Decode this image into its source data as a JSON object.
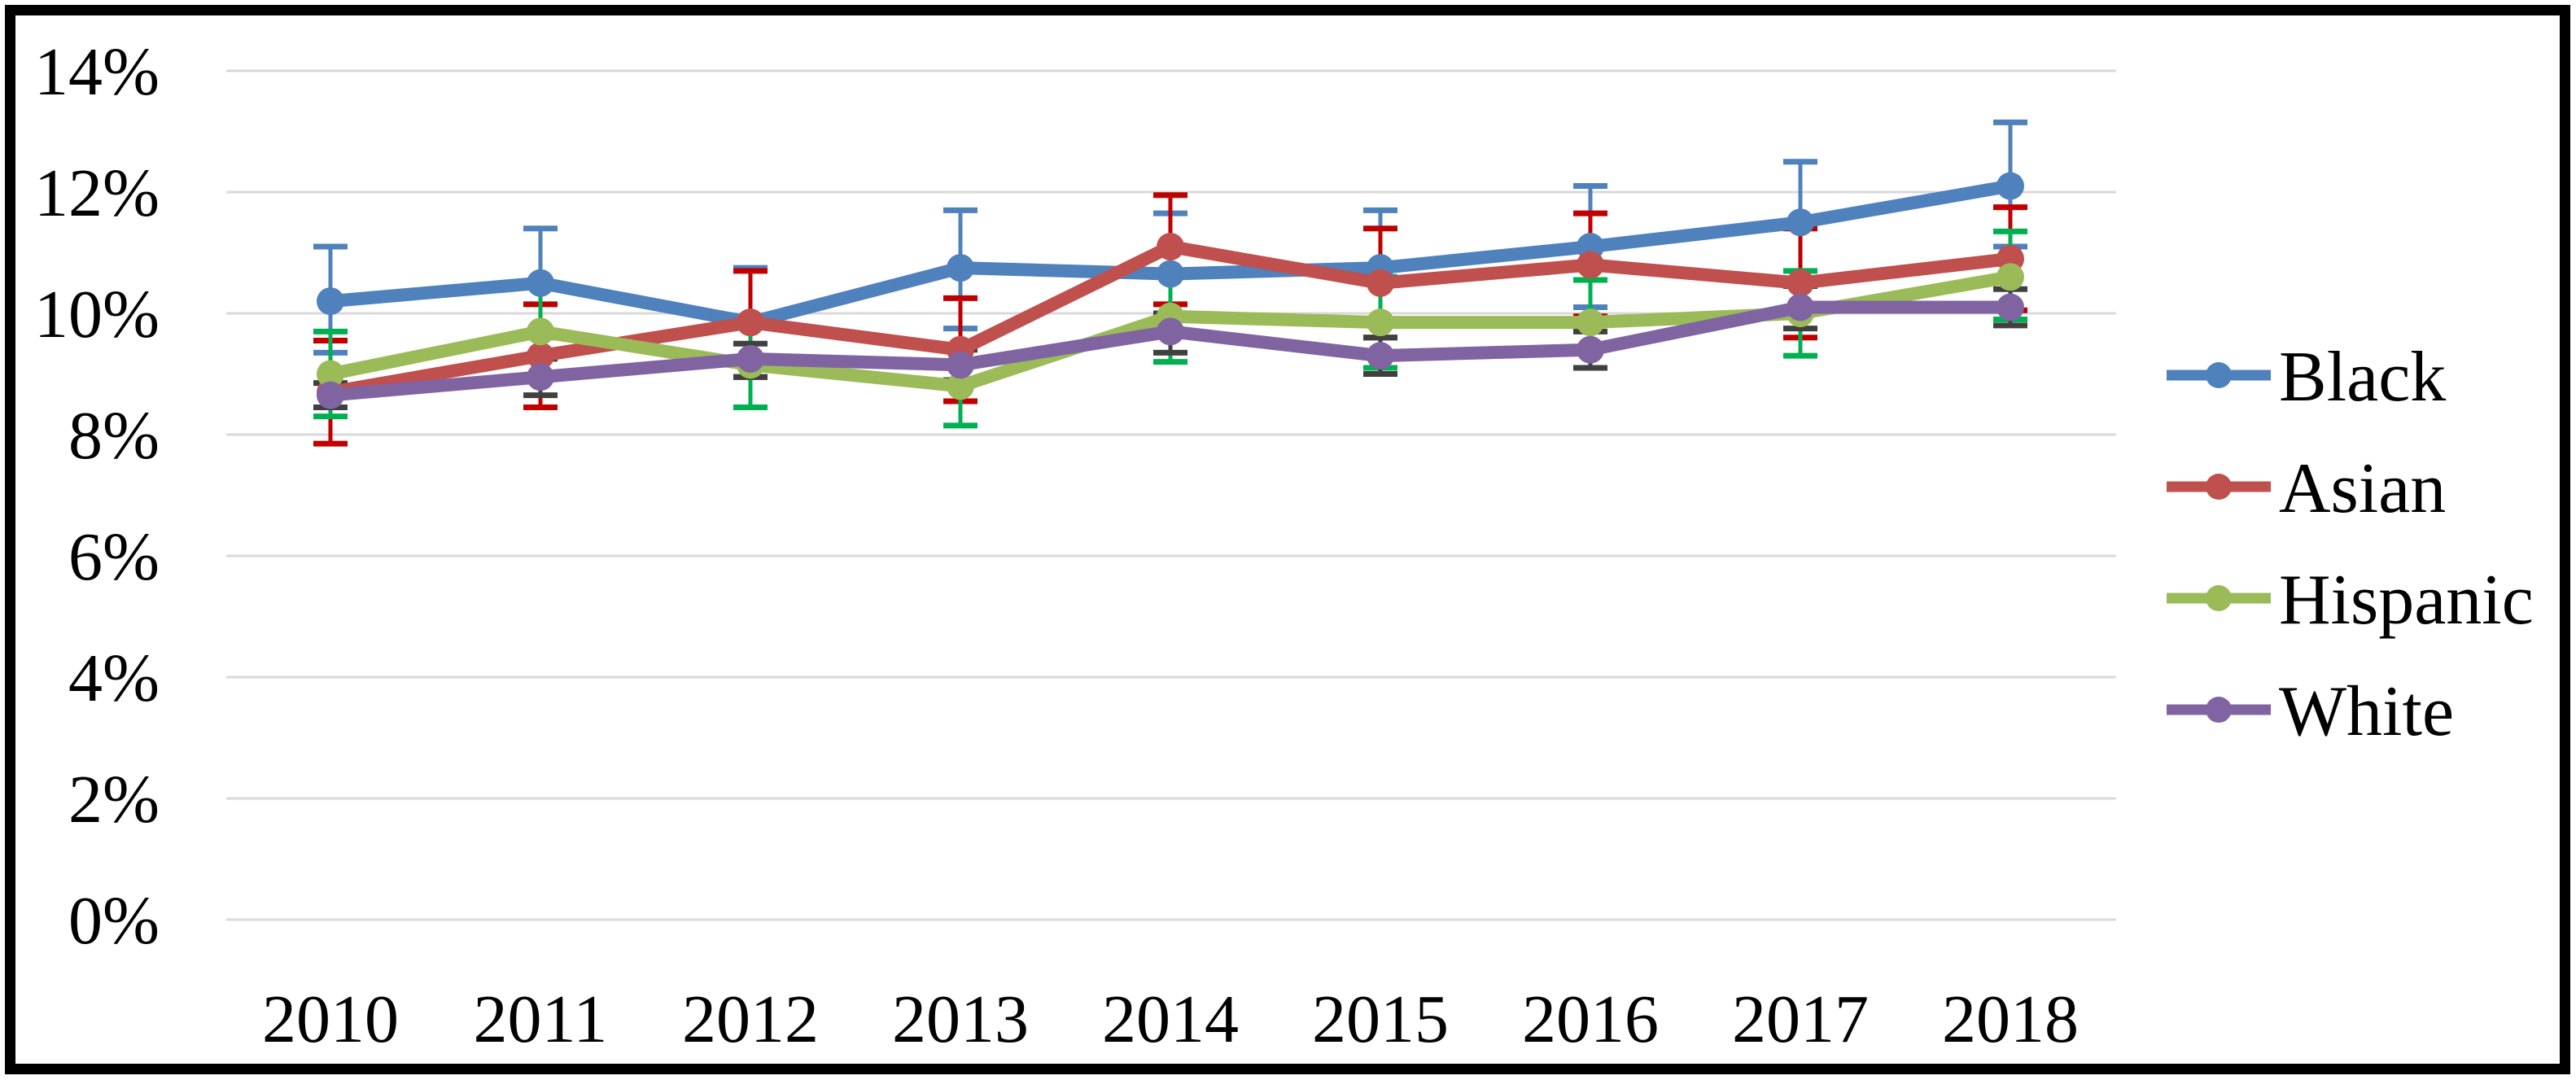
{
  "chart_data": {
    "type": "line",
    "title": "",
    "categories": [
      "2010",
      "2011",
      "2012",
      "2013",
      "2014",
      "2015",
      "2016",
      "2017",
      "2018"
    ],
    "y_ticks": [
      "0%",
      "2%",
      "4%",
      "6%",
      "8%",
      "10%",
      "12%",
      "14%"
    ],
    "ylim": [
      0,
      14
    ],
    "y_unit": "%",
    "grid": "horizontal",
    "gridline_color": "#D9D9D9",
    "legend_position": "right",
    "series": [
      {
        "name": "Black",
        "color": "#4F81BD",
        "error_color": "#4F81BD",
        "values": [
          10.2,
          10.5,
          9.85,
          10.75,
          10.65,
          10.75,
          11.1,
          11.5,
          12.1
        ],
        "err_high": [
          11.1,
          11.4,
          10.75,
          11.7,
          11.65,
          11.7,
          12.1,
          12.5,
          13.15
        ],
        "err_low": [
          9.35,
          9.6,
          8.95,
          9.75,
          9.7,
          9.8,
          10.1,
          10.55,
          11.1
        ]
      },
      {
        "name": "Asian",
        "color": "#C0504D",
        "error_color": "#C00000",
        "values": [
          8.7,
          9.3,
          9.85,
          9.4,
          11.1,
          10.5,
          10.8,
          10.5,
          10.9
        ],
        "err_high": [
          9.55,
          10.15,
          10.7,
          10.25,
          11.95,
          11.4,
          11.65,
          11.4,
          11.75
        ],
        "err_low": [
          7.85,
          8.45,
          8.95,
          8.55,
          10.15,
          9.6,
          9.95,
          9.6,
          10.05
        ]
      },
      {
        "name": "Hispanic",
        "color": "#9BBB59",
        "error_color": "#00B050",
        "values": [
          9.0,
          9.7,
          9.15,
          8.8,
          9.95,
          9.85,
          9.85,
          10.0,
          10.6
        ],
        "err_high": [
          9.7,
          10.45,
          9.85,
          9.45,
          10.7,
          10.6,
          10.55,
          10.7,
          11.35
        ],
        "err_low": [
          8.3,
          8.95,
          8.45,
          8.15,
          9.2,
          9.1,
          9.1,
          9.3,
          9.9
        ]
      },
      {
        "name": "White",
        "color": "#8064A2",
        "error_color": "#404040",
        "values": [
          8.65,
          8.95,
          9.25,
          9.15,
          9.7,
          9.3,
          9.4,
          10.1,
          10.1
        ],
        "err_high": [
          8.85,
          9.25,
          9.5,
          9.4,
          10.0,
          9.6,
          9.7,
          10.45,
          10.4
        ],
        "err_low": [
          8.45,
          8.65,
          8.95,
          8.9,
          9.35,
          9.0,
          9.1,
          9.75,
          9.8
        ]
      }
    ]
  }
}
